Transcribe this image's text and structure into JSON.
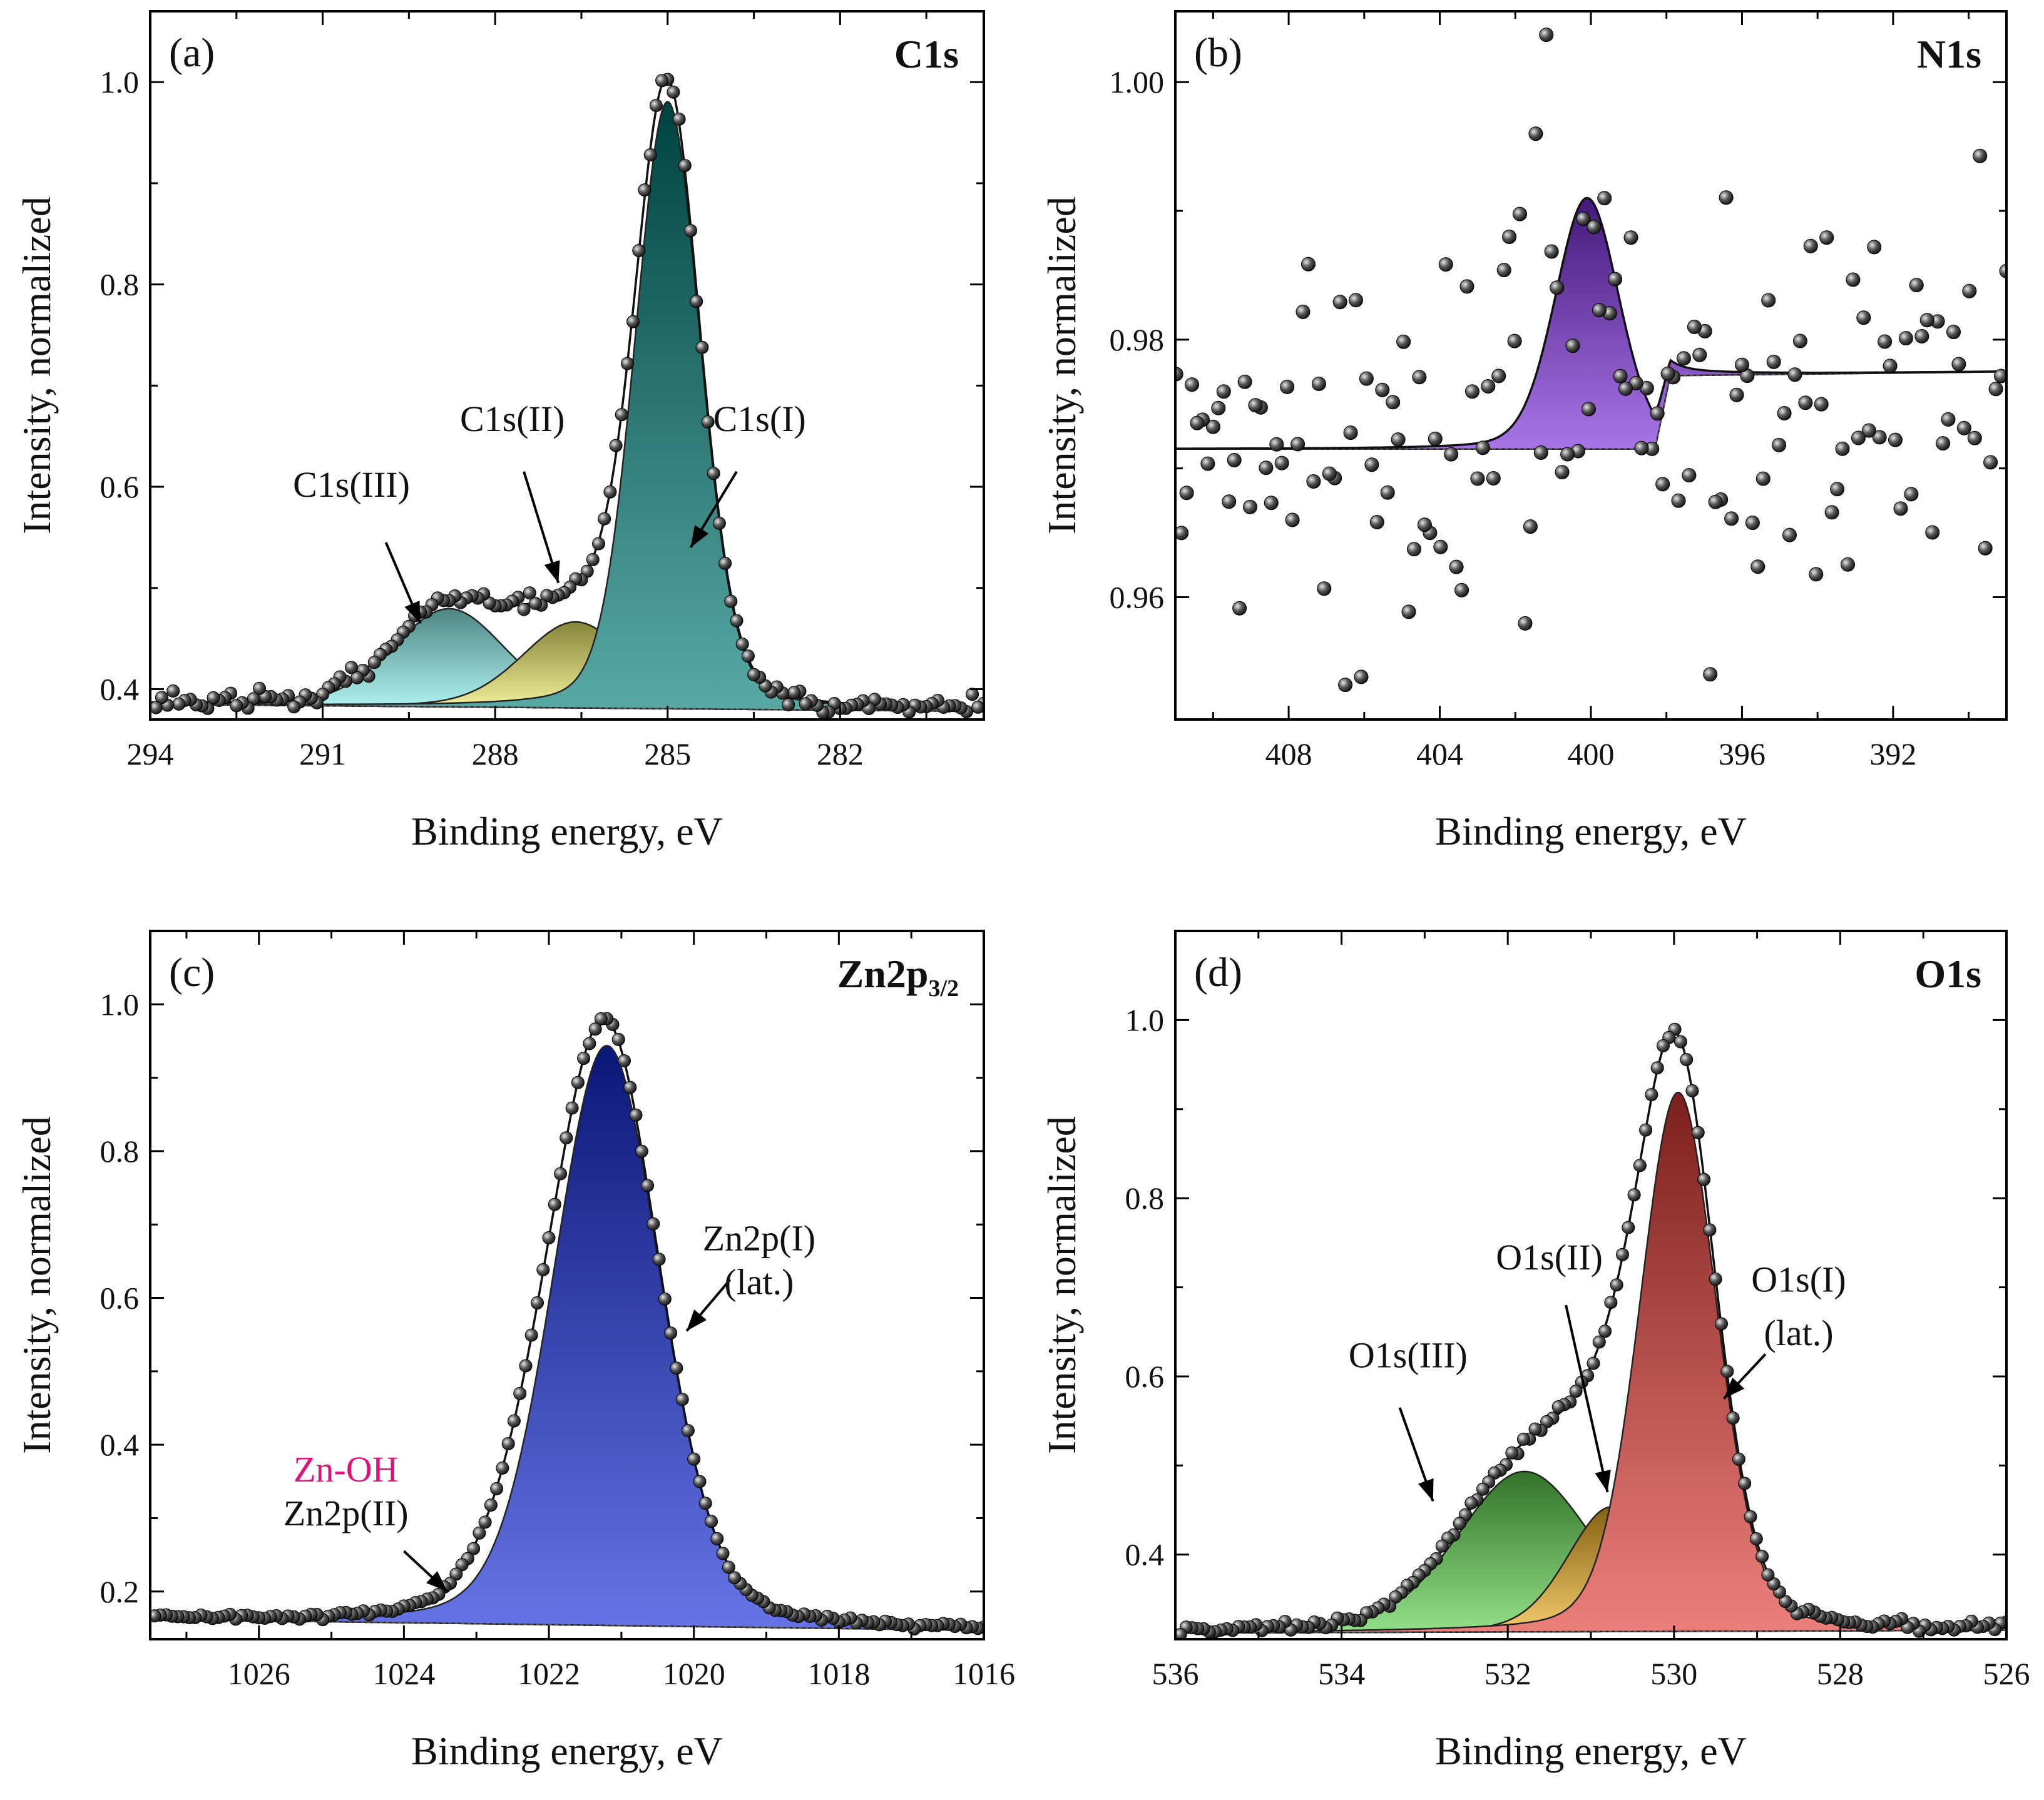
{
  "figure": {
    "colors": {
      "c1s_I": "#007a75",
      "c1s_II": "#f3f06a",
      "c1s_III": "#8cf2ee",
      "n1s_I": "#7a2bdc",
      "zn_I": "#1429d8",
      "zn_II": "#d81b7a",
      "o1s_I": "#e23a34",
      "o1s_II": "#f0b020",
      "o1s_III": "#5ad04a",
      "points": "#333333",
      "zn_oh_label": "#e0107a"
    }
  },
  "chart_data": [
    {
      "id": "a",
      "type": "scatter",
      "panel_label": "(a)",
      "title": "C1s",
      "title_sub": "",
      "xlabel": "Binding energy, eV",
      "ylabel": "Intensity, normalized",
      "xlim": [
        294,
        279.5
      ],
      "ylim": [
        0.37,
        1.07
      ],
      "xticks": [
        294,
        291,
        288,
        285,
        282
      ],
      "yticks": [
        0.4,
        0.6,
        0.8,
        1.0
      ],
      "ytick_labels": [
        "0.4",
        "0.6",
        "0.8",
        "1.0"
      ],
      "baseline": [
        [
          294,
          0.385
        ],
        [
          279.5,
          0.378
        ]
      ],
      "components": [
        {
          "name": "C1s(I)",
          "center": 285.0,
          "fwhm": 1.35,
          "height": 0.6,
          "color_key": "c1s_I"
        },
        {
          "name": "C1s(II)",
          "center": 286.6,
          "fwhm": 2.2,
          "height": 0.085,
          "color_key": "c1s_II"
        },
        {
          "name": "C1s(III)",
          "center": 288.8,
          "fwhm": 2.3,
          "height": 0.097,
          "color_key": "c1s_III"
        }
      ],
      "points_step": 0.1,
      "noise": 0.005,
      "annotations": [
        {
          "text": "C1s(I)",
          "text_x": 283.4,
          "text_y": 0.655,
          "arrow_from": [
            283.8,
            0.615
          ],
          "arrow_to": [
            284.6,
            0.54
          ]
        },
        {
          "text": "C1s(II)",
          "text_x": 287.7,
          "text_y": 0.655,
          "arrow_from": [
            287.5,
            0.615
          ],
          "arrow_to": [
            286.9,
            0.505
          ]
        },
        {
          "text": "C1s(III)",
          "text_x": 290.5,
          "text_y": 0.59,
          "arrow_from": [
            289.9,
            0.545
          ],
          "arrow_to": [
            289.3,
            0.465
          ]
        }
      ]
    },
    {
      "id": "b",
      "type": "scatter",
      "panel_label": "(b)",
      "title": "N1s",
      "title_sub": "",
      "xlabel": "Binding energy, eV",
      "ylabel": "Intensity, normalized",
      "xlim": [
        411,
        389
      ],
      "ylim": [
        0.9505,
        1.0055
      ],
      "xticks": [
        408,
        404,
        400,
        396,
        392
      ],
      "yticks": [
        0.96,
        0.98,
        1.0
      ],
      "ytick_labels": [
        "0.96",
        "0.98",
        "1.00"
      ],
      "baseline": [
        [
          411,
          0.9715
        ],
        [
          398.3,
          0.9715
        ],
        [
          397.9,
          0.9772
        ],
        [
          389,
          0.9775
        ]
      ],
      "components": [
        {
          "name": "N1s",
          "center": 400.1,
          "fwhm": 2.0,
          "height": 0.0195,
          "color_key": "n1s_I"
        }
      ],
      "points_step": 0.14,
      "noise": 0.0085,
      "annotations": []
    },
    {
      "id": "c",
      "type": "scatter",
      "panel_label": "(c)",
      "title": "Zn2p",
      "title_sub": "3/2",
      "xlabel": "Binding energy, eV",
      "ylabel": "Intensity, normalized",
      "xlim": [
        1027.5,
        1016
      ],
      "ylim": [
        0.135,
        1.1
      ],
      "xticks": [
        1026,
        1024,
        1022,
        1020,
        1018,
        1016
      ],
      "yticks": [
        0.2,
        0.4,
        0.6,
        0.8,
        1.0
      ],
      "ytick_labels": [
        "0.2",
        "0.4",
        "0.6",
        "0.8",
        "1.0"
      ],
      "baseline": [
        [
          1027.5,
          0.162
        ],
        [
          1016,
          0.147
        ]
      ],
      "components": [
        {
          "name": "Zn2p(I)",
          "center": 1021.2,
          "fwhm": 1.75,
          "height": 0.79,
          "color_key": "zn_I"
        },
        {
          "name": "Zn2p(II)",
          "center": 1022.2,
          "fwhm": 1.7,
          "height": 0.09,
          "color_key": "zn_II"
        }
      ],
      "points_step": 0.08,
      "noise": 0.002,
      "annotations": [
        {
          "text": "Zn2p(I)",
          "text_x": 1019.1,
          "text_y": 0.665,
          "arrow_from": [
            1019.5,
            0.625
          ],
          "arrow_to": [
            1020.1,
            0.555
          ]
        },
        {
          "text": "(lat.)",
          "text_x": 1019.1,
          "text_y": 0.605,
          "arrow_from": null,
          "arrow_to": null
        },
        {
          "text": "Zn-OH",
          "text_x": 1024.8,
          "text_y": 0.35,
          "arrow_from": null,
          "arrow_to": null,
          "color_key": "zn_oh_label"
        },
        {
          "text": "Zn2p(II)",
          "text_x": 1024.8,
          "text_y": 0.29,
          "arrow_from": [
            1024.0,
            0.255
          ],
          "arrow_to": [
            1023.4,
            0.2
          ]
        }
      ]
    },
    {
      "id": "d",
      "type": "scatter",
      "panel_label": "(d)",
      "title": "O1s",
      "title_sub": "",
      "xlabel": "Binding energy, eV",
      "ylabel": "Intensity, normalized",
      "xlim": [
        536,
        526
      ],
      "ylim": [
        0.305,
        1.1
      ],
      "xticks": [
        536,
        534,
        532,
        530,
        528,
        526
      ],
      "yticks": [
        0.4,
        0.6,
        0.8,
        1.0
      ],
      "ytick_labels": [
        "0.4",
        "0.6",
        "0.8",
        "1.0"
      ],
      "baseline": [
        [
          536,
          0.312
        ],
        [
          526,
          0.315
        ]
      ],
      "components": [
        {
          "name": "O1s(I)",
          "center": 529.95,
          "fwhm": 1.1,
          "height": 0.605,
          "color_key": "o1s_I"
        },
        {
          "name": "O1s(II)",
          "center": 530.75,
          "fwhm": 1.25,
          "height": 0.14,
          "color_key": "o1s_II"
        },
        {
          "name": "O1s(III)",
          "center": 531.8,
          "fwhm": 1.9,
          "height": 0.18,
          "color_key": "o1s_III"
        }
      ],
      "points_step": 0.07,
      "noise": 0.003,
      "annotations": [
        {
          "text": "O1s(I)",
          "text_x": 528.5,
          "text_y": 0.695,
          "arrow_from": null,
          "arrow_to": null
        },
        {
          "text": "(lat.)",
          "text_x": 528.5,
          "text_y": 0.635,
          "arrow_from": [
            528.9,
            0.625
          ],
          "arrow_to": [
            529.4,
            0.575
          ]
        },
        {
          "text": "O1s(II)",
          "text_x": 531.5,
          "text_y": 0.72,
          "arrow_from": [
            531.3,
            0.68
          ],
          "arrow_to": [
            530.8,
            0.47
          ]
        },
        {
          "text": "O1s(III)",
          "text_x": 533.2,
          "text_y": 0.61,
          "arrow_from": [
            533.3,
            0.565
          ],
          "arrow_to": [
            532.9,
            0.46
          ]
        }
      ]
    }
  ]
}
